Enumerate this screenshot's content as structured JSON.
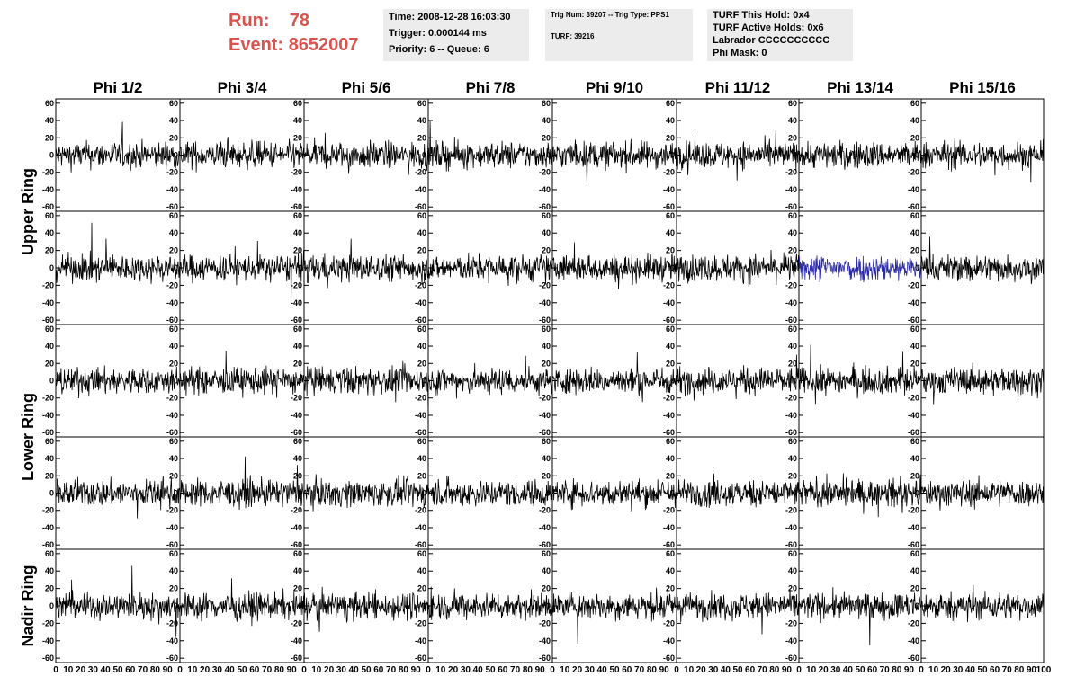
{
  "header": {
    "run_label": "Run:",
    "run_value": "78",
    "event_label": "Event:",
    "event_value": "8652007",
    "run_color": "#d9534f"
  },
  "info_box_1": {
    "time": "Time: 2008-12-28 16:03:30",
    "trigger": "Trigger: 0.000144 ms",
    "priority": "Priority: 6 -- Queue: 6"
  },
  "info_box_2": {
    "trig": "Trig Num: 39207 -- Trig Type: PPS1",
    "turf": "TURF: 39216"
  },
  "info_box_3": {
    "turf_hold": "TURF This Hold: 0x4",
    "turf_active": "TURF Active Holds: 0x6",
    "labrador": "Labrador CCCCCCCCCC",
    "phi_mask": "Phi Mask: 0"
  },
  "chart_data": {
    "type": "line",
    "columns": [
      "Phi 1/2",
      "Phi 3/4",
      "Phi 5/6",
      "Phi 7/8",
      "Phi 9/10",
      "Phi 11/12",
      "Phi 13/14",
      "Phi 15/16"
    ],
    "rows": [
      "Upper Ring",
      "Upper Ring",
      "Lower Ring",
      "Lower Ring",
      "Nadir Ring"
    ],
    "row_labels": [
      {
        "text": "Upper Ring",
        "rows": [
          0,
          1
        ]
      },
      {
        "text": "Lower Ring",
        "rows": [
          2,
          3
        ]
      },
      {
        "text": "Nadir Ring",
        "rows": [
          4,
          4
        ]
      }
    ],
    "xlim": [
      0,
      100
    ],
    "ylim": [
      -65,
      65
    ],
    "y_ticks": [
      -60,
      -40,
      -20,
      0,
      20,
      40,
      60
    ],
    "x_tick_labels": [
      "0",
      "10",
      "20",
      "30",
      "40",
      "50",
      "60",
      "70",
      "80",
      "90",
      "100"
    ],
    "highlight": {
      "row": 1,
      "col": 6,
      "color": "#2b2ba8"
    },
    "line_color": "#000000",
    "samples_per_panel": 260,
    "amplitude": 14
  }
}
